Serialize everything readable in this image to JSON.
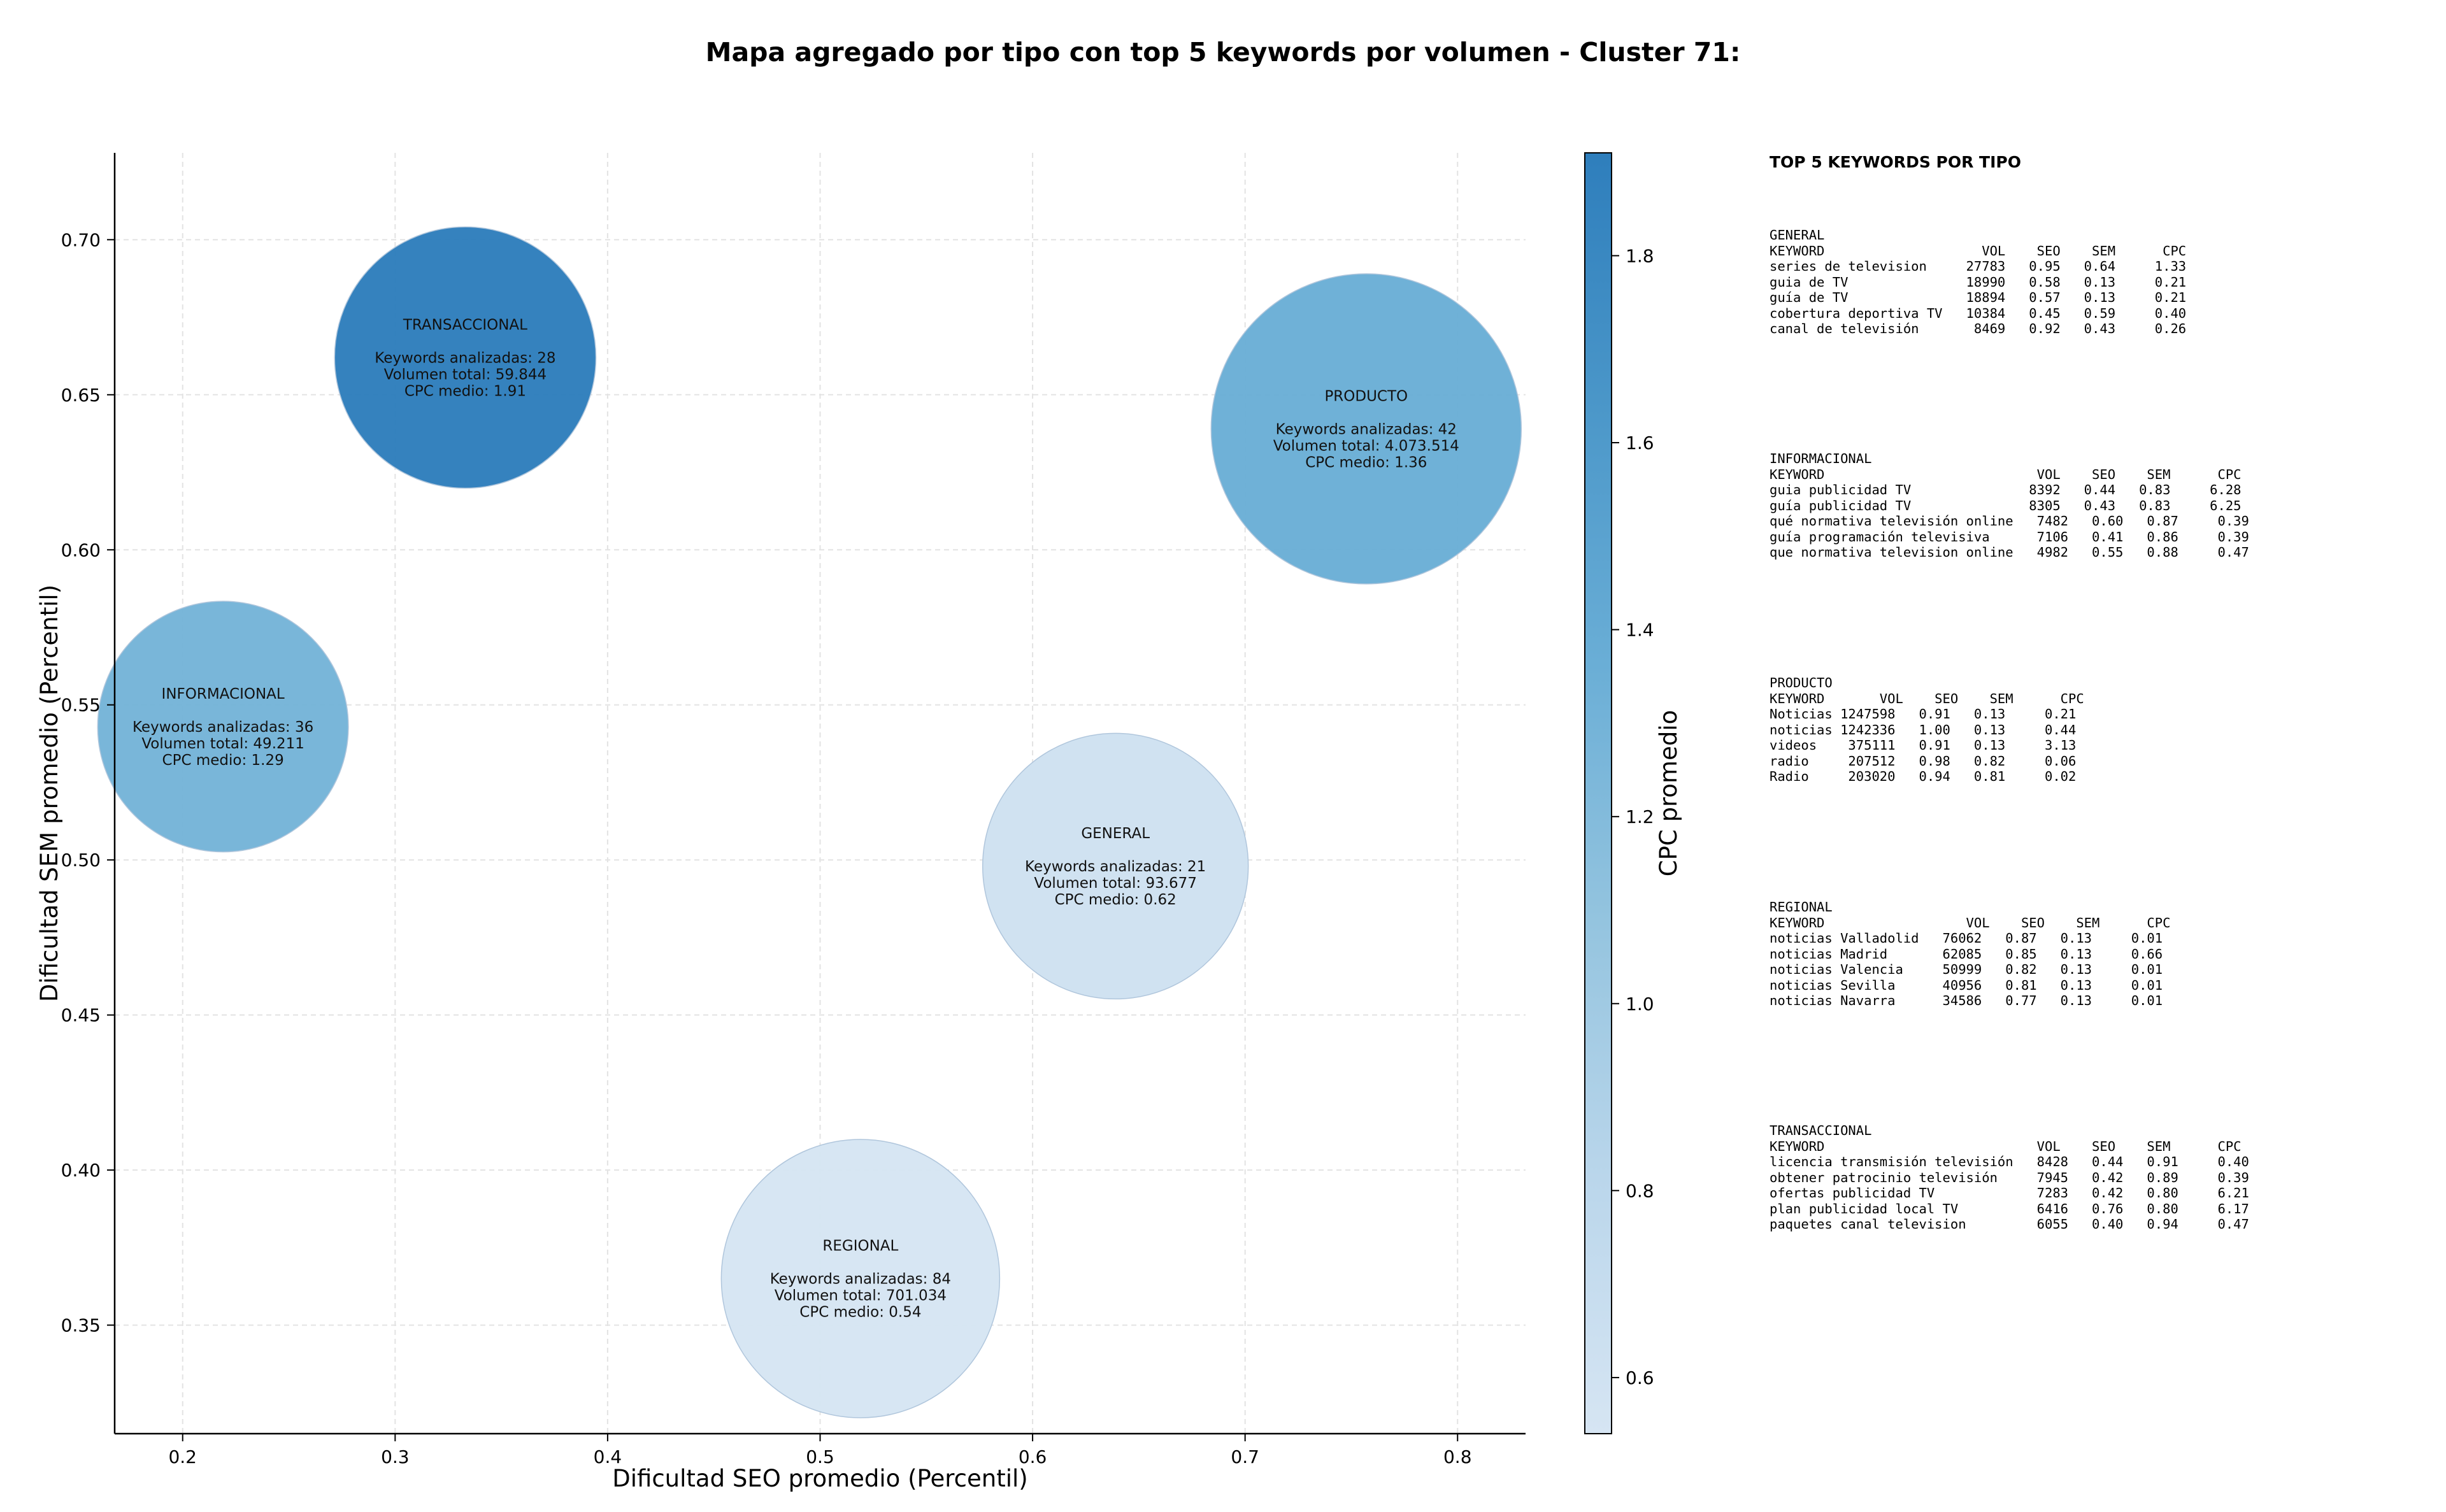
{
  "chart_data": {
    "type": "scatter",
    "title": "Mapa agregado por tipo con top 5 keywords por volumen - Cluster 71:",
    "xlabel": "Dificultad SEO promedio (Percentil)",
    "ylabel": "Dificultad SEM promedio (Percentil)",
    "xlim": [
      0.168,
      0.832
    ],
    "ylim": [
      0.315,
      0.728
    ],
    "xticks": [
      "0.2",
      "0.3",
      "0.4",
      "0.5",
      "0.6",
      "0.7",
      "0.8"
    ],
    "yticks": [
      "0.35",
      "0.40",
      "0.45",
      "0.50",
      "0.55",
      "0.60",
      "0.65",
      "0.70"
    ],
    "grid": true,
    "colorbar": {
      "label": "CPC promedio",
      "min": 0.54,
      "max": 1.91,
      "ticks": [
        "0.6",
        "0.8",
        "1.0",
        "1.2",
        "1.4",
        "1.6",
        "1.8"
      ],
      "colormap": [
        "#d6e5f3",
        "#bad6eb",
        "#94c4df",
        "#6aaed6",
        "#4b97c9",
        "#2e7ebc"
      ]
    },
    "points": [
      {
        "label": "TRANSACCIONAL",
        "x": 0.333,
        "y": 0.662,
        "cpc": 1.91,
        "radius_units": 0.0615,
        "lines": [
          "TRANSACCIONAL",
          "",
          "Keywords analizadas: 28",
          "Volumen total: 59.844",
          "CPC medio: 1.91"
        ]
      },
      {
        "label": "PRODUCTO",
        "x": 0.757,
        "y": 0.639,
        "cpc": 1.36,
        "radius_units": 0.073,
        "lines": [
          "PRODUCTO",
          "",
          "Keywords analizadas: 42",
          "Volumen total: 4.073.514",
          "CPC medio: 1.36"
        ]
      },
      {
        "label": "INFORMACIONAL",
        "x": 0.219,
        "y": 0.543,
        "cpc": 1.29,
        "radius_units": 0.059,
        "lines": [
          "INFORMACIONAL",
          "",
          "Keywords analizadas: 36",
          "Volumen total: 49.211",
          "CPC medio: 1.29"
        ]
      },
      {
        "label": "GENERAL",
        "x": 0.639,
        "y": 0.498,
        "cpc": 0.62,
        "radius_units": 0.0625,
        "lines": [
          "GENERAL",
          "",
          "Keywords analizadas: 21",
          "Volumen total: 93.677",
          "CPC medio: 0.62"
        ]
      },
      {
        "label": "REGIONAL",
        "x": 0.519,
        "y": 0.365,
        "cpc": 0.54,
        "radius_units": 0.0655,
        "lines": [
          "REGIONAL",
          "",
          "Keywords analizadas: 84",
          "Volumen total: 701.034",
          "CPC medio: 0.54"
        ]
      }
    ]
  },
  "side_panel": {
    "title": "TOP 5 KEYWORDS POR TIPO",
    "blocks": [
      {
        "lines": [
          "GENERAL",
          "KEYWORD                    VOL    SEO    SEM      CPC",
          "series de television     27783   0.95   0.64     1.33",
          "guia de TV               18990   0.58   0.13     0.21",
          "guía de TV               18894   0.57   0.13     0.21",
          "cobertura deportiva TV   10384   0.45   0.59     0.40",
          "canal de televisión       8469   0.92   0.43     0.26"
        ]
      },
      {
        "lines": [
          "INFORMACIONAL",
          "KEYWORD                           VOL    SEO    SEM      CPC",
          "guia publicidad TV               8392   0.44   0.83     6.28",
          "guía publicidad TV               8305   0.43   0.83     6.25",
          "qué normativa televisión online   7482   0.60   0.87     0.39",
          "guía programación televisiva      7106   0.41   0.86     0.39",
          "que normativa television online   4982   0.55   0.88     0.47"
        ]
      },
      {
        "lines": [
          "PRODUCTO",
          "KEYWORD       VOL    SEO    SEM      CPC",
          "Noticias 1247598   0.91   0.13     0.21",
          "noticias 1242336   1.00   0.13     0.44",
          "videos    375111   0.91   0.13     3.13",
          "radio     207512   0.98   0.82     0.06",
          "Radio     203020   0.94   0.81     0.02"
        ]
      },
      {
        "lines": [
          "REGIONAL",
          "KEYWORD                  VOL    SEO    SEM      CPC",
          "noticias Valladolid   76062   0.87   0.13     0.01",
          "noticias Madrid       62085   0.85   0.13     0.66",
          "noticias Valencia     50999   0.82   0.13     0.01",
          "noticias Sevilla      40956   0.81   0.13     0.01",
          "noticias Navarra      34586   0.77   0.13     0.01"
        ]
      },
      {
        "lines": [
          "TRANSACCIONAL",
          "KEYWORD                           VOL    SEO    SEM      CPC",
          "licencia transmisión televisión   8428   0.44   0.91     0.40",
          "obtener patrocinio televisión     7945   0.42   0.89     0.39",
          "ofertas publicidad TV             7283   0.42   0.80     6.21",
          "plan publicidad local TV          6416   0.76   0.80     6.17",
          "paquetes canal television         6055   0.40   0.94     0.47"
        ]
      }
    ]
  }
}
